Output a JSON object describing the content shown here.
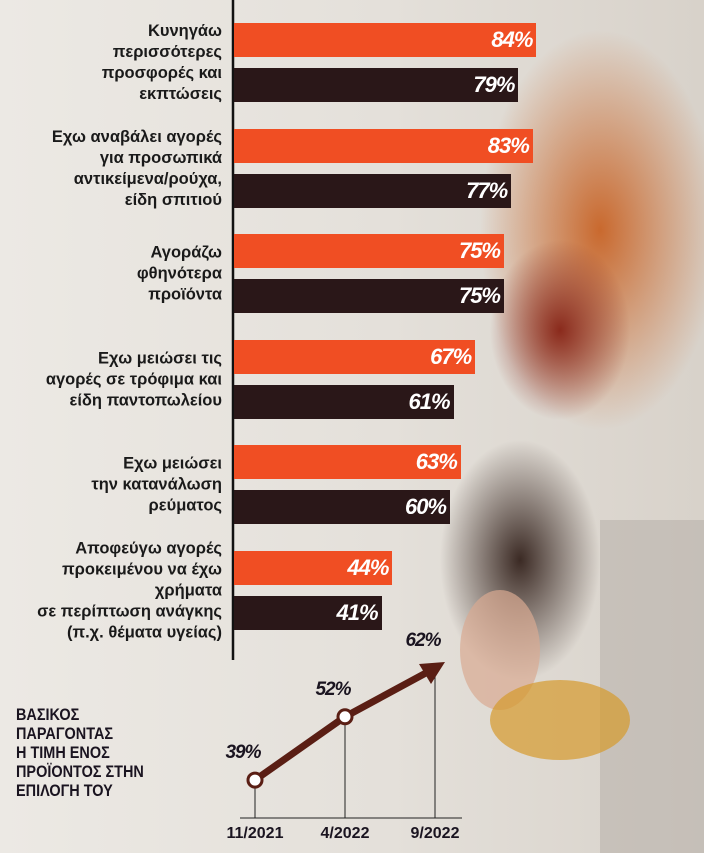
{
  "chart_data": [
    {
      "type": "bar",
      "categories": [
        "Κυνηγάω\nπερισσότερες\nπροσφορές και\nεκπτώσεις",
        "Εχω αναβάλει αγορές\nγια προσωπικά\nαντικείμενα/ρούχα,\nείδη σπιτιού",
        "Αγοράζω\nφθηνότερα\nπροϊόντα",
        "Εχω μειώσει τις\nαγορές σε τρόφιμα και\nείδη παντοπωλείου",
        "Εχω μειώσει\nτην κατανάλωση\nρεύματος",
        "Αποφεύγω αγορές\nπροκειμένου να έχω\nχρήματα\nσε περίπτωση ανάγκης\n(π.χ. θέματα υγείας)"
      ],
      "series": [
        {
          "color": "#f04e23",
          "values": [
            84,
            83,
            75,
            67,
            63,
            44
          ],
          "value_labels": [
            "84%",
            "83%",
            "75%",
            "67%",
            "63%",
            "44%"
          ]
        },
        {
          "color": "#2a1718",
          "values": [
            79,
            77,
            75,
            61,
            60,
            41
          ],
          "value_labels": [
            "79%",
            "77%",
            "75%",
            "61%",
            "60%",
            "41%"
          ]
        }
      ]
    },
    {
      "type": "line",
      "title": "ΒΑΣΙΚΟΣ\nΠΑΡΑΓΟΝΤΑΣ\nΗ ΤΙΜΗ ΕΝΟΣ\nΠΡΟΪΟΝΤΟΣ ΣΤΗΝ\nΕΠΙΛΟΓΗ ΤΟΥ",
      "categories": [
        "11/2021",
        "4/2022",
        "9/2022"
      ],
      "values": [
        39,
        52,
        62
      ],
      "value_labels": [
        "39%",
        "52%",
        "62%"
      ],
      "color": "#5a1e14"
    }
  ]
}
